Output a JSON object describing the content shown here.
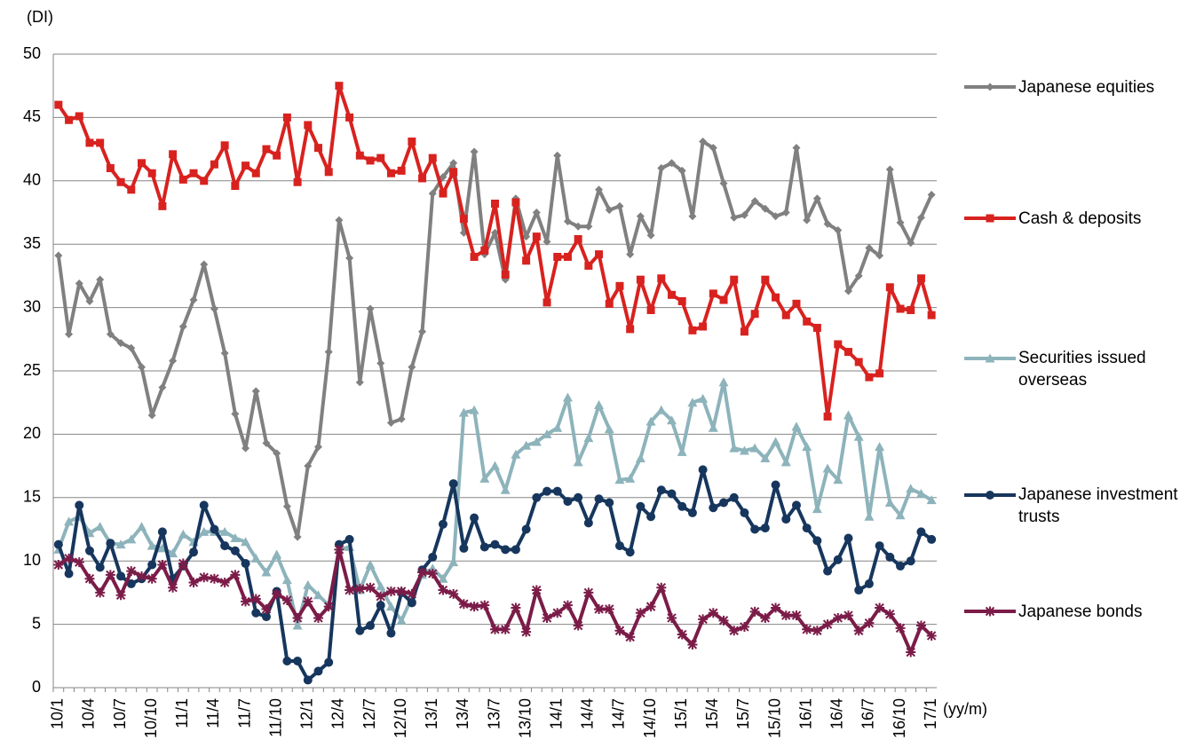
{
  "chart_data": {
    "type": "line",
    "y_label": "(DI)",
    "x_label": "(yy/m)",
    "categories": [
      "10/1",
      null,
      null,
      "10/4",
      null,
      null,
      "10/7",
      null,
      null,
      "10/10",
      null,
      null,
      "11/1",
      null,
      null,
      "11/4",
      null,
      null,
      "11/7",
      null,
      null,
      "11/10",
      null,
      null,
      "12/1",
      null,
      null,
      "12/4",
      null,
      null,
      "12/7",
      null,
      null,
      "12/10",
      null,
      null,
      "13/1",
      null,
      null,
      "13/4",
      null,
      null,
      "13/7",
      null,
      null,
      "13/10",
      null,
      null,
      "14/1",
      null,
      null,
      "14/4",
      null,
      null,
      "14/7",
      null,
      null,
      "14/10",
      null,
      null,
      "15/1",
      null,
      null,
      "15/4",
      null,
      null,
      "15/7",
      null,
      null,
      "15/10",
      null,
      null,
      "16/1",
      null,
      null,
      "16/4",
      null,
      null,
      "16/7",
      null,
      null,
      "16/10",
      null,
      null,
      "17/1"
    ],
    "ylim": [
      0,
      50
    ],
    "yticks": [
      0,
      5,
      10,
      15,
      20,
      25,
      30,
      35,
      40,
      45,
      50
    ],
    "grid": true,
    "legend": "right",
    "series": [
      {
        "name": "Japanese equities",
        "color": "#808080",
        "marker": "diamond",
        "values": [
          34.1,
          27.9,
          31.9,
          30.5,
          32.2,
          27.9,
          27.2,
          26.8,
          25.3,
          21.5,
          23.7,
          25.8,
          28.5,
          30.6,
          33.4,
          29.9,
          26.4,
          21.6,
          18.9,
          23.4,
          19.3,
          18.5,
          14.3,
          11.9,
          17.5,
          19.0,
          26.5,
          36.9,
          33.9,
          24.1,
          29.9,
          25.6,
          20.9,
          21.2,
          25.3,
          28.1,
          39.0,
          40.3,
          41.4,
          35.9,
          42.3,
          34.2,
          35.9,
          32.2,
          38.6,
          35.6,
          37.5,
          35.2,
          42.0,
          36.8,
          36.4,
          36.4,
          39.3,
          37.7,
          38.0,
          34.2,
          37.2,
          35.7,
          41.0,
          41.4,
          40.8,
          37.2,
          43.1,
          42.6,
          39.8,
          37.1,
          37.3,
          38.4,
          37.8,
          37.2,
          37.5,
          42.6,
          36.9,
          38.6,
          36.6,
          36.1,
          31.3,
          32.5,
          34.7,
          34.1,
          40.9,
          36.7,
          35.1,
          37.1,
          38.9
        ]
      },
      {
        "name": "Cash & deposits",
        "color": "#d8221f",
        "marker": "square",
        "values": [
          46.0,
          44.8,
          45.1,
          43.0,
          43.0,
          41.0,
          39.9,
          39.3,
          41.4,
          40.6,
          38.0,
          42.1,
          40.1,
          40.6,
          40.0,
          41.3,
          42.8,
          39.6,
          41.2,
          40.6,
          42.5,
          42.0,
          45.0,
          39.9,
          44.4,
          42.6,
          40.7,
          47.5,
          45.0,
          42.0,
          41.6,
          41.8,
          40.6,
          40.8,
          43.1,
          40.2,
          41.8,
          39.0,
          40.7,
          37.0,
          34.0,
          34.5,
          38.2,
          32.6,
          38.3,
          33.7,
          35.6,
          30.4,
          34.0,
          34.0,
          35.4,
          33.3,
          34.2,
          30.3,
          31.7,
          28.3,
          32.2,
          29.8,
          32.3,
          31.0,
          30.5,
          28.2,
          28.5,
          31.1,
          30.6,
          32.2,
          28.1,
          29.5,
          32.2,
          30.8,
          29.4,
          30.3,
          28.9,
          28.4,
          21.4,
          27.1,
          26.5,
          25.7,
          24.5,
          24.8,
          31.6,
          29.9,
          29.8,
          32.3,
          29.4
        ]
      },
      {
        "name": "Securities issued overseas",
        "color": "#8db3bb",
        "marker": "triangle",
        "values": [
          10.9,
          13.1,
          13.5,
          12.2,
          12.7,
          11.4,
          11.3,
          11.7,
          12.7,
          11.2,
          11.0,
          10.6,
          12.1,
          11.5,
          12.3,
          12.3,
          12.3,
          11.8,
          11.5,
          10.2,
          9.1,
          10.5,
          8.5,
          4.9,
          8.1,
          7.3,
          6.5,
          10.9,
          11.1,
          7.7,
          9.7,
          8.0,
          6.4,
          5.3,
          7.1,
          8.9,
          9.4,
          8.6,
          9.9,
          21.7,
          21.9,
          16.5,
          17.5,
          15.6,
          18.4,
          19.1,
          19.4,
          20.0,
          20.5,
          22.9,
          17.8,
          19.7,
          22.3,
          20.4,
          16.4,
          16.5,
          18.1,
          21.0,
          21.9,
          21.1,
          18.6,
          22.5,
          22.8,
          20.5,
          24.1,
          18.9,
          18.7,
          18.9,
          18.1,
          19.4,
          17.8,
          20.6,
          19.0,
          14.1,
          17.3,
          16.4,
          21.5,
          19.8,
          13.5,
          19.0,
          14.6,
          13.6,
          15.7,
          15.3,
          14.8
        ]
      },
      {
        "name": "Japanese investment trusts",
        "color": "#16365d",
        "marker": "circle",
        "values": [
          11.3,
          9.0,
          14.4,
          10.8,
          9.5,
          11.4,
          8.8,
          8.2,
          8.6,
          9.7,
          12.3,
          8.6,
          9.6,
          10.7,
          14.4,
          12.5,
          11.2,
          10.8,
          9.8,
          5.9,
          5.6,
          7.6,
          2.1,
          2.1,
          0.6,
          1.3,
          2.0,
          11.3,
          11.7,
          4.5,
          4.9,
          6.5,
          4.3,
          7.5,
          6.7,
          9.3,
          10.3,
          12.9,
          16.1,
          11.0,
          13.4,
          11.1,
          11.3,
          10.9,
          10.9,
          12.5,
          15.0,
          15.5,
          15.5,
          14.7,
          15.0,
          13.0,
          14.9,
          14.6,
          11.2,
          10.7,
          14.3,
          13.5,
          15.6,
          15.3,
          14.3,
          13.8,
          17.2,
          14.2,
          14.6,
          15.0,
          13.8,
          12.5,
          12.6,
          16.0,
          13.3,
          14.4,
          12.6,
          11.6,
          9.2,
          10.1,
          11.8,
          7.7,
          8.2,
          11.2,
          10.3,
          9.6,
          10.0,
          12.3,
          11.7
        ]
      },
      {
        "name": "Japanese bonds",
        "color": "#7b1c48",
        "marker": "star",
        "values": [
          9.7,
          10.2,
          9.9,
          8.6,
          7.5,
          8.9,
          7.3,
          9.2,
          8.8,
          8.6,
          9.7,
          7.9,
          9.8,
          8.3,
          8.7,
          8.6,
          8.3,
          8.9,
          6.8,
          7.0,
          6.2,
          7.4,
          6.9,
          5.5,
          6.8,
          5.5,
          6.4,
          10.9,
          7.7,
          7.8,
          7.9,
          7.2,
          7.6,
          7.6,
          7.4,
          9.1,
          9.0,
          7.7,
          7.4,
          6.6,
          6.4,
          6.5,
          4.6,
          4.6,
          6.3,
          4.4,
          7.7,
          5.5,
          5.9,
          6.5,
          4.9,
          7.5,
          6.2,
          6.2,
          4.5,
          4.0,
          5.9,
          6.4,
          7.9,
          5.5,
          4.2,
          3.4,
          5.4,
          5.9,
          5.3,
          4.5,
          4.8,
          6.0,
          5.5,
          6.3,
          5.7,
          5.7,
          4.6,
          4.5,
          5.0,
          5.5,
          5.7,
          4.5,
          5.1,
          6.3,
          5.8,
          4.7,
          2.8,
          4.9,
          4.1
        ]
      }
    ]
  }
}
